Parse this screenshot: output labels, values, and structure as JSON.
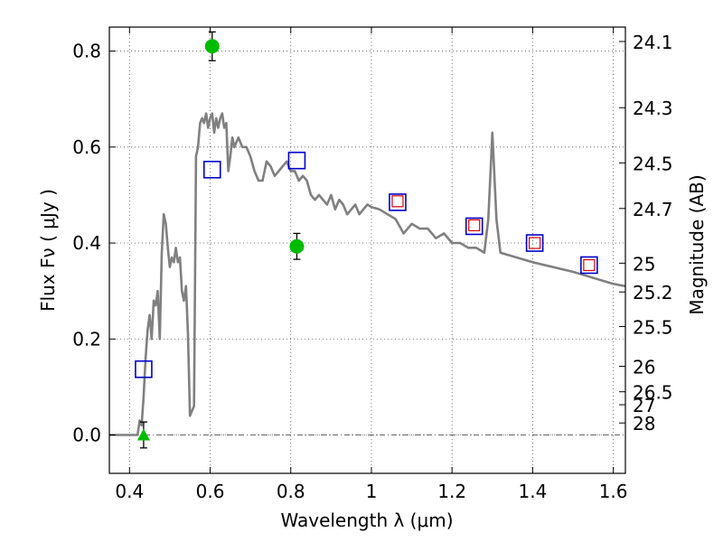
{
  "chart_data": {
    "type": "scatter",
    "xlabel": "Wavelength  λ (μm)",
    "ylabel": "Flux  Fν  ( μJy )",
    "y2label": "Magnitude (AB)",
    "xlim": [
      0.35,
      1.63
    ],
    "ylim": [
      -0.08,
      0.85
    ],
    "grid": true,
    "x_ticks": [
      0.4,
      0.6,
      0.8,
      1.0,
      1.2,
      1.4,
      1.6
    ],
    "x_tick_labels": [
      "0.4",
      "0.6",
      "0.8",
      "1",
      "1.2",
      "1.4",
      "1.6"
    ],
    "y_ticks": [
      0.0,
      0.2,
      0.4,
      0.6,
      0.8
    ],
    "y_tick_labels": [
      "0.0",
      "0.2",
      "0.4",
      "0.6",
      "0.8"
    ],
    "mag_ticks": [
      {
        "label": "24.1",
        "flux": 0.82
      },
      {
        "label": "24.3",
        "flux": 0.682
      },
      {
        "label": "24.5",
        "flux": 0.567
      },
      {
        "label": "24.7",
        "flux": 0.472
      },
      {
        "label": "25",
        "flux": 0.358
      },
      {
        "label": "25.2",
        "flux": 0.298
      },
      {
        "label": "25.5",
        "flux": 0.226
      },
      {
        "label": "26",
        "flux": 0.143
      },
      {
        "label": "26.5",
        "flux": 0.09
      },
      {
        "label": "27",
        "flux": 0.063
      },
      {
        "label": "28",
        "flux": 0.025
      }
    ],
    "colors": {
      "model": "#808080",
      "observed": "#00bb00",
      "model_photometry": "#0000cc",
      "inner_marker": "#dd0000",
      "errorbar": "#000000"
    },
    "series": [
      {
        "marker": "line",
        "x": [
          0.35,
          0.42,
          0.425,
          0.43,
          0.435,
          0.44,
          0.445,
          0.45,
          0.455,
          0.46,
          0.465,
          0.47,
          0.475,
          0.48,
          0.485,
          0.49,
          0.495,
          0.5,
          0.505,
          0.51,
          0.515,
          0.52,
          0.525,
          0.53,
          0.535,
          0.54,
          0.545,
          0.55,
          0.555,
          0.56,
          0.565,
          0.57,
          0.575,
          0.58,
          0.585,
          0.59,
          0.595,
          0.6,
          0.605,
          0.61,
          0.615,
          0.62,
          0.625,
          0.63,
          0.635,
          0.64,
          0.645,
          0.65,
          0.655,
          0.66,
          0.67,
          0.68,
          0.69,
          0.7,
          0.71,
          0.72,
          0.73,
          0.74,
          0.75,
          0.76,
          0.77,
          0.78,
          0.79,
          0.8,
          0.81,
          0.82,
          0.83,
          0.84,
          0.85,
          0.86,
          0.87,
          0.88,
          0.89,
          0.9,
          0.91,
          0.92,
          0.93,
          0.94,
          0.95,
          0.96,
          0.97,
          0.98,
          0.99,
          1.0,
          1.02,
          1.04,
          1.06,
          1.08,
          1.1,
          1.12,
          1.14,
          1.16,
          1.18,
          1.2,
          1.22,
          1.24,
          1.26,
          1.28,
          1.29,
          1.3,
          1.31,
          1.32,
          1.4,
          1.5,
          1.6,
          1.63
        ],
        "y": [
          0.0,
          0.0,
          0.03,
          0.02,
          0.08,
          0.16,
          0.22,
          0.25,
          0.2,
          0.28,
          0.27,
          0.3,
          0.2,
          0.38,
          0.46,
          0.44,
          0.39,
          0.35,
          0.37,
          0.36,
          0.39,
          0.36,
          0.37,
          0.3,
          0.28,
          0.31,
          0.21,
          0.04,
          0.05,
          0.06,
          0.58,
          0.6,
          0.65,
          0.66,
          0.65,
          0.67,
          0.64,
          0.66,
          0.67,
          0.63,
          0.66,
          0.64,
          0.66,
          0.67,
          0.64,
          0.65,
          0.55,
          0.58,
          0.62,
          0.6,
          0.62,
          0.6,
          0.6,
          0.58,
          0.55,
          0.53,
          0.53,
          0.57,
          0.56,
          0.54,
          0.55,
          0.56,
          0.57,
          0.55,
          0.55,
          0.53,
          0.54,
          0.53,
          0.5,
          0.49,
          0.5,
          0.49,
          0.48,
          0.5,
          0.47,
          0.49,
          0.48,
          0.46,
          0.47,
          0.48,
          0.46,
          0.47,
          0.48,
          0.475,
          0.47,
          0.46,
          0.45,
          0.42,
          0.44,
          0.43,
          0.43,
          0.41,
          0.42,
          0.4,
          0.4,
          0.39,
          0.39,
          0.38,
          0.45,
          0.63,
          0.45,
          0.38,
          0.36,
          0.34,
          0.315,
          0.31
        ]
      },
      {
        "marker": "circle",
        "x": [
          0.605,
          0.815
        ],
        "y": [
          0.81,
          0.393
        ],
        "yerr": [
          0.03,
          0.027
        ]
      },
      {
        "marker": "triangle",
        "x": [
          0.435
        ],
        "y": [
          0.0
        ],
        "yerr": [
          0.027
        ]
      },
      {
        "marker": "square",
        "x": [
          0.435,
          0.605,
          0.815,
          1.065,
          1.255,
          1.405,
          1.54
        ],
        "y": [
          0.137,
          0.553,
          0.572,
          0.485,
          0.435,
          0.4,
          0.354
        ]
      },
      {
        "marker": "inner-square",
        "x": [
          1.065,
          1.255,
          1.405,
          1.54
        ],
        "y": [
          0.487,
          0.437,
          0.4,
          0.354
        ]
      }
    ]
  }
}
